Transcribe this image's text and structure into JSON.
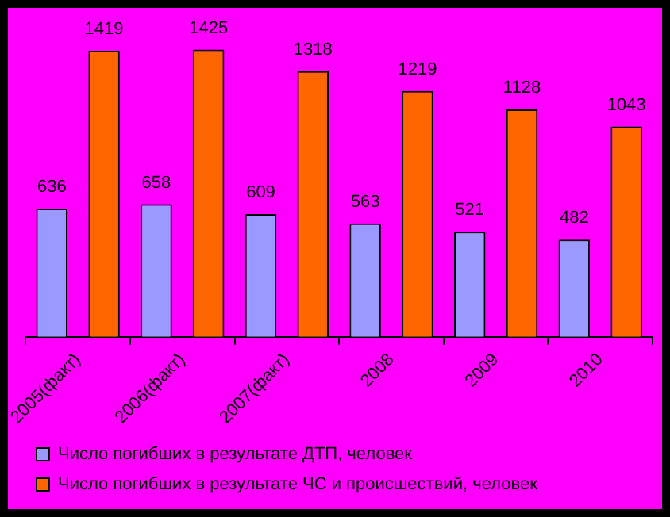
{
  "chart_data": {
    "type": "bar",
    "categories": [
      "2005(факт)",
      "2006(факт)",
      "2007(факт)",
      "2008",
      "2009",
      "2010"
    ],
    "series": [
      {
        "name": "Число погибших в результате ДТП, человек",
        "color": "#9999ff",
        "values": [
          636,
          658,
          609,
          563,
          521,
          482
        ]
      },
      {
        "name": "Число погибших в результате ЧС и происшествий, человек",
        "color": "#ff6600",
        "values": [
          1419,
          1425,
          1318,
          1219,
          1128,
          1043
        ]
      }
    ],
    "tick_labels": "x",
    "data_labels": true,
    "grid": false,
    "legend": "bottom"
  }
}
